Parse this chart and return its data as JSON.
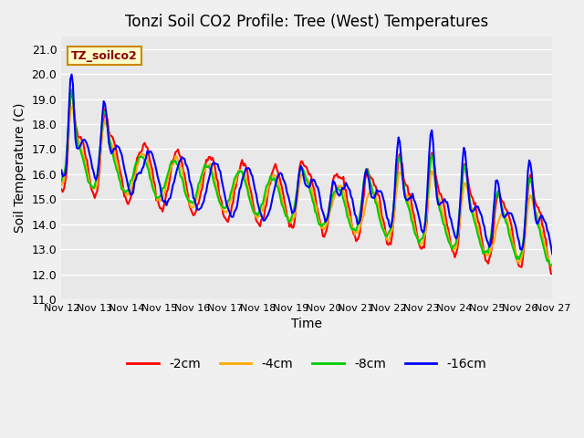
{
  "title": "Tonzi Soil CO2 Profile: Tree (West) Temperatures",
  "ylabel": "Soil Temperature (C)",
  "xlabel": "Time",
  "label_text": "TZ_soilco2",
  "ylim": [
    11.0,
    21.5
  ],
  "yticks": [
    11.0,
    12.0,
    13.0,
    14.0,
    15.0,
    16.0,
    17.0,
    18.0,
    19.0,
    20.0,
    21.0
  ],
  "xtick_labels": [
    "Nov 12",
    "Nov 13",
    "Nov 14",
    "Nov 15",
    "Nov 16",
    "Nov 17",
    "Nov 18",
    "Nov 19",
    "Nov 20",
    "Nov 21",
    "Nov 22",
    "Nov 23",
    "Nov 24",
    "Nov 25",
    "Nov 26",
    "Nov 27"
  ],
  "colors": {
    "-2cm": "#ff0000",
    "-4cm": "#ffaa00",
    "-8cm": "#00cc00",
    "-16cm": "#0000ff"
  },
  "legend_labels": [
    "-2cm",
    "-4cm",
    "-8cm",
    "-16cm"
  ],
  "bg_color": "#e8e8e8",
  "grid_color": "#ffffff",
  "line_width": 1.5,
  "num_points": 384
}
